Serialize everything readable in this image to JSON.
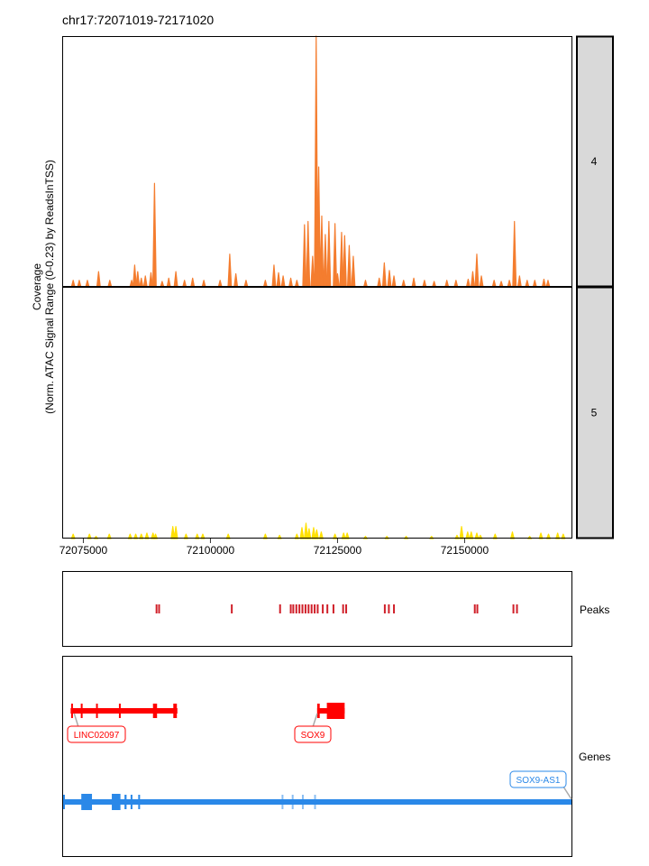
{
  "title": "chr17:72071019-72171020",
  "ylabel_line1": "Coverage",
  "ylabel_line2": "(Norm. ATAC Signal Range (0-0.23) by ReadsInTSS)",
  "peaks_label": "Peaks",
  "genes_label": "Genes",
  "colors": {
    "track4": "#F47D2F",
    "track5": "#FFE000",
    "peaks": "#D0202A",
    "gene_plus": "#FF0000",
    "gene_minus": "#2A88E8",
    "strip_fill": "#D9D9D9"
  },
  "chart_data": {
    "type": "area",
    "x_range": [
      72071019,
      72171020
    ],
    "y_range": [
      0,
      0.23
    ],
    "x_ticks": [
      {
        "value": 72075000,
        "label": "72075000"
      },
      {
        "value": 72100000,
        "label": "72100000"
      },
      {
        "value": 72125000,
        "label": "72125000"
      },
      {
        "value": 72150000,
        "label": "72150000"
      }
    ],
    "tracks": [
      {
        "name": "4",
        "peaks": [
          [
            72073000,
            0.006
          ],
          [
            72074200,
            0.006
          ],
          [
            72075800,
            0.006
          ],
          [
            72078000,
            0.014
          ],
          [
            72080200,
            0.006
          ],
          [
            72084500,
            0.006
          ],
          [
            72085100,
            0.02
          ],
          [
            72085700,
            0.014
          ],
          [
            72086400,
            0.008
          ],
          [
            72087200,
            0.01
          ],
          [
            72088300,
            0.013
          ],
          [
            72089000,
            0.095
          ],
          [
            72090500,
            0.005
          ],
          [
            72091800,
            0.008
          ],
          [
            72093200,
            0.014
          ],
          [
            72094900,
            0.006
          ],
          [
            72096500,
            0.008
          ],
          [
            72098700,
            0.006
          ],
          [
            72101900,
            0.006
          ],
          [
            72103800,
            0.03
          ],
          [
            72105000,
            0.012
          ],
          [
            72107000,
            0.006
          ],
          [
            72110800,
            0.006
          ],
          [
            72112500,
            0.02
          ],
          [
            72113400,
            0.013
          ],
          [
            72114300,
            0.01
          ],
          [
            72115800,
            0.008
          ],
          [
            72117000,
            0.006
          ],
          [
            72118500,
            0.057
          ],
          [
            72119200,
            0.06
          ],
          [
            72120100,
            0.028
          ],
          [
            72120800,
            0.23
          ],
          [
            72121300,
            0.11
          ],
          [
            72121900,
            0.065
          ],
          [
            72122600,
            0.048
          ],
          [
            72123300,
            0.06
          ],
          [
            72124500,
            0.058
          ],
          [
            72125000,
            0.012
          ],
          [
            72125800,
            0.05
          ],
          [
            72126400,
            0.047
          ],
          [
            72127300,
            0.038
          ],
          [
            72128100,
            0.028
          ],
          [
            72130500,
            0.006
          ],
          [
            72133200,
            0.008
          ],
          [
            72134200,
            0.022
          ],
          [
            72135200,
            0.015
          ],
          [
            72136100,
            0.01
          ],
          [
            72138000,
            0.006
          ],
          [
            72140000,
            0.008
          ],
          [
            72142100,
            0.006
          ],
          [
            72144000,
            0.005
          ],
          [
            72146500,
            0.006
          ],
          [
            72148300,
            0.006
          ],
          [
            72150700,
            0.007
          ],
          [
            72151600,
            0.014
          ],
          [
            72152400,
            0.03
          ],
          [
            72153300,
            0.01
          ],
          [
            72155800,
            0.006
          ],
          [
            72157200,
            0.005
          ],
          [
            72158800,
            0.006
          ],
          [
            72159800,
            0.06
          ],
          [
            72160800,
            0.01
          ],
          [
            72162300,
            0.006
          ],
          [
            72163800,
            0.006
          ],
          [
            72165600,
            0.007
          ],
          [
            72166400,
            0.006
          ]
        ]
      },
      {
        "name": "5",
        "peaks": [
          [
            72073000,
            0.004
          ],
          [
            72076200,
            0.004
          ],
          [
            72077500,
            0.002
          ],
          [
            72080100,
            0.004
          ],
          [
            72084200,
            0.004
          ],
          [
            72085300,
            0.004
          ],
          [
            72086400,
            0.004
          ],
          [
            72087500,
            0.005
          ],
          [
            72088700,
            0.005
          ],
          [
            72089200,
            0.004
          ],
          [
            72092600,
            0.011
          ],
          [
            72093200,
            0.011
          ],
          [
            72095200,
            0.004
          ],
          [
            72097400,
            0.004
          ],
          [
            72098500,
            0.004
          ],
          [
            72103500,
            0.004
          ],
          [
            72110800,
            0.004
          ],
          [
            72113600,
            0.003
          ],
          [
            72117000,
            0.004
          ],
          [
            72118000,
            0.01
          ],
          [
            72118800,
            0.014
          ],
          [
            72119400,
            0.009
          ],
          [
            72120300,
            0.01
          ],
          [
            72120900,
            0.008
          ],
          [
            72121800,
            0.006
          ],
          [
            72124500,
            0.004
          ],
          [
            72126200,
            0.005
          ],
          [
            72126900,
            0.005
          ],
          [
            72130500,
            0.002
          ],
          [
            72134700,
            0.002
          ],
          [
            72138500,
            0.002
          ],
          [
            72143500,
            0.002
          ],
          [
            72148500,
            0.003
          ],
          [
            72149400,
            0.011
          ],
          [
            72150600,
            0.006
          ],
          [
            72151300,
            0.006
          ],
          [
            72152400,
            0.005
          ],
          [
            72153100,
            0.003
          ],
          [
            72156000,
            0.004
          ],
          [
            72159400,
            0.006
          ],
          [
            72162800,
            0.002
          ],
          [
            72165000,
            0.005
          ],
          [
            72166500,
            0.004
          ],
          [
            72168300,
            0.005
          ],
          [
            72169400,
            0.004
          ]
        ]
      }
    ],
    "peak_regions": [
      72089400,
      72089900,
      72104200,
      72113700,
      72115800,
      72116300,
      72116900,
      72117500,
      72118100,
      72118700,
      72119300,
      72119900,
      72120500,
      72121100,
      72122100,
      72123000,
      72124200,
      72126100,
      72126700,
      72134300,
      72135100,
      72136100,
      72152000,
      72152500,
      72159600,
      72160300
    ],
    "genes": [
      {
        "name": "LINC02097",
        "strand": "+",
        "start": 72072500,
        "end": 72093500,
        "exons": [
          [
            72072600,
            72072900
          ],
          [
            72074500,
            72074800
          ],
          [
            72077500,
            72077800
          ],
          [
            72082000,
            72082300
          ],
          [
            72088700,
            72089500
          ],
          [
            72092700,
            72093400
          ]
        ]
      },
      {
        "name": "SOX9",
        "strand": "+",
        "start": 72121000,
        "end": 72126400,
        "exons": [
          [
            72121000,
            72121500
          ],
          [
            72122900,
            72126400
          ]
        ]
      },
      {
        "name": "SOX9-AS1",
        "strand": "-",
        "start": 72071019,
        "end": 72171020,
        "exons": [
          [
            72071019,
            72071300
          ],
          [
            72074600,
            72076700
          ],
          [
            72080600,
            72082300
          ],
          [
            72083100,
            72083500
          ],
          [
            72084300,
            72084600
          ],
          [
            72085800,
            72086100
          ],
          [
            72114000,
            72114300
          ],
          [
            72116000,
            72116300
          ],
          [
            72118000,
            72118300
          ],
          [
            72120400,
            72120700
          ]
        ]
      }
    ]
  }
}
